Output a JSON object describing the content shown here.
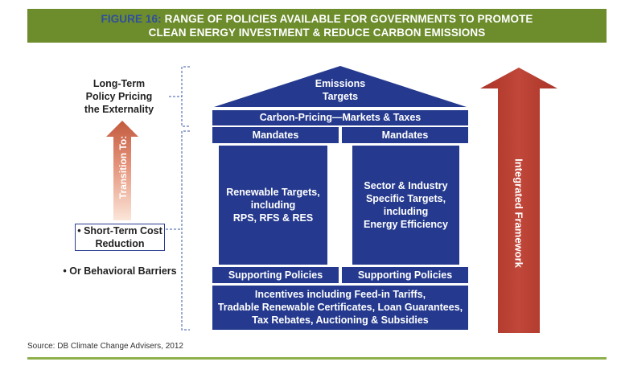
{
  "header": {
    "figure_label": "FIGURE 16:",
    "title_line1": "RANGE OF POLICIES AVAILABLE FOR GOVERNMENTS TO PROMOTE",
    "title_line2": "CLEAN ENERGY INVESTMENT & REDUCE CARBON EMISSIONS"
  },
  "left": {
    "long_term": [
      "Long-Term",
      "Policy Pricing",
      "the Externality"
    ],
    "transition": "Transition To:",
    "short_term": [
      "• Short-Term Cost",
      "Reduction"
    ],
    "behavioral": "• Or Behavioral Barriers"
  },
  "house": {
    "roof": [
      "Emissions",
      "Targets"
    ],
    "carbon_pricing": "Carbon-Pricing—Markets & Taxes",
    "mandates_left": "Mandates",
    "mandates_right": "Mandates",
    "pillar_left": [
      "Renewable Targets,",
      "including",
      "RPS, RFS & RES"
    ],
    "pillar_right": [
      "Sector & Industry",
      "Specific Targets,",
      "including",
      "Energy Efficiency"
    ],
    "supporting_left": "Supporting Policies",
    "supporting_right": "Supporting Policies",
    "foundation": [
      "Incentives including Feed-in Tariffs,",
      "Tradable Renewable Certificates, Loan Guarantees,",
      "Tax Rebates, Auctioning & Subsidies"
    ]
  },
  "right_arrow": {
    "label": "Integrated Framework",
    "color": "#b03a2e"
  },
  "colors": {
    "navy": "#253a8e",
    "header_green": "#6d8c2c",
    "rule_green": "#8db04a"
  },
  "source": "Source: DB Climate Change Advisers, 2012"
}
